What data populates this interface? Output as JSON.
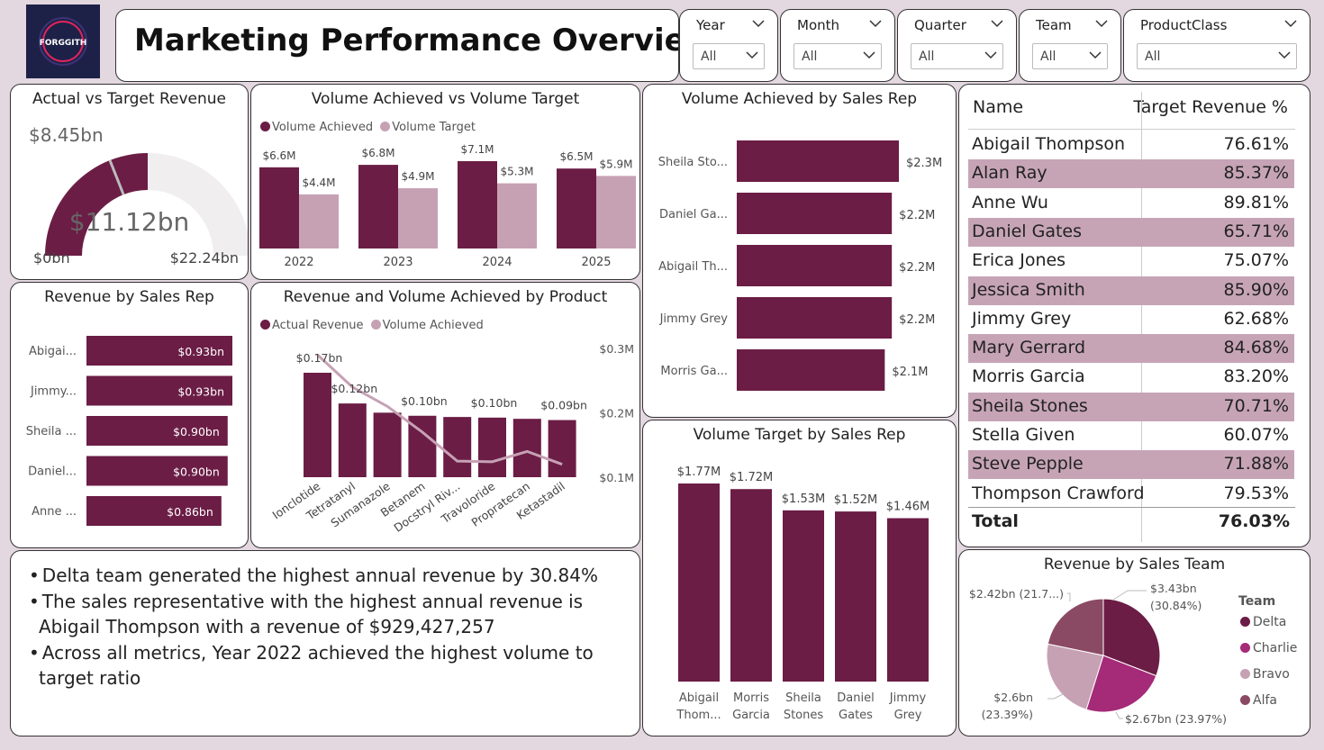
{
  "logo": {
    "text": "FORGGITH"
  },
  "header": {
    "title": "Marketing Performance Overview"
  },
  "slicers": [
    {
      "label": "Year",
      "value": "All"
    },
    {
      "label": "Month",
      "value": "All"
    },
    {
      "label": "Quarter",
      "value": "All"
    },
    {
      "label": "Team",
      "value": "All"
    },
    {
      "label": "ProductClass",
      "value": "All"
    }
  ],
  "colors": {
    "primary": "#6b1d45",
    "light": "#c6a1b4",
    "pink": "#a52a78",
    "mauve": "#8b4a63",
    "table_band": "#c6a4b6",
    "gauge_bg": "#f0eeee"
  },
  "gauge": {
    "title": "Actual vs Target Revenue",
    "value_label": "$11.12bn",
    "min_label": "$0bn",
    "max_label": "$22.24bn",
    "target_label": "$8.45bn"
  },
  "volume_by_year": {
    "title": "Volume Achieved vs Volume Target"
  },
  "revenue_by_rep": {
    "title": "Revenue by Sales Rep"
  },
  "rev_vol_product": {
    "title": "Revenue and Volume Achieved by Product"
  },
  "vol_achieved_rep": {
    "title": "Volume Achieved by Sales Rep"
  },
  "vol_target_rep": {
    "title": "Volume Target by Sales Rep"
  },
  "target_table": {
    "col_name": "Name",
    "col_value": "Target Revenue %",
    "rows": [
      {
        "name": "Abigail Thompson",
        "value": "76.61%"
      },
      {
        "name": "Alan Ray",
        "value": "85.37%"
      },
      {
        "name": "Anne Wu",
        "value": "89.81%"
      },
      {
        "name": "Daniel Gates",
        "value": "65.71%"
      },
      {
        "name": "Erica Jones",
        "value": "75.07%"
      },
      {
        "name": "Jessica Smith",
        "value": "85.90%"
      },
      {
        "name": "Jimmy Grey",
        "value": "62.68%"
      },
      {
        "name": "Mary Gerrard",
        "value": "84.68%"
      },
      {
        "name": "Morris Garcia",
        "value": "83.20%"
      },
      {
        "name": "Sheila Stones",
        "value": "70.71%"
      },
      {
        "name": "Stella Given",
        "value": "60.07%"
      },
      {
        "name": "Steve Pepple",
        "value": "71.88%"
      },
      {
        "name": "Thompson Crawford",
        "value": "79.53%"
      }
    ],
    "total_label": "Total",
    "total_value": "76.03%"
  },
  "insights": [
    "Delta team generated the highest annual revenue by 30.84%",
    "The sales representative with the highest annual revenue is Abigail Thompson with a revenue of $929,427,257",
    "Across all metrics, Year 2022 achieved the highest volume to target ratio"
  ],
  "team_pie": {
    "title": "Revenue by Sales Team",
    "legend_title": "Team"
  },
  "chart_data": [
    {
      "id": "gauge",
      "type": "gauge",
      "title": "Actual vs Target Revenue",
      "value": 11.12,
      "min": 0,
      "max": 22.24,
      "target": 8.45,
      "unit": "bn"
    },
    {
      "id": "volume_by_year",
      "type": "bar",
      "title": "Volume Achieved vs Volume Target",
      "categories": [
        "2022",
        "2023",
        "2024",
        "2025"
      ],
      "series": [
        {
          "name": "Volume Achieved",
          "values": [
            6.6,
            6.8,
            7.1,
            6.5
          ],
          "labels": [
            "$6.6M",
            "$6.8M",
            "$7.1M",
            "$6.5M"
          ]
        },
        {
          "name": "Volume Target",
          "values": [
            4.4,
            4.9,
            5.3,
            5.9
          ],
          "labels": [
            "$4.4M",
            "$4.9M",
            "$5.3M",
            "$5.9M"
          ]
        }
      ]
    },
    {
      "id": "revenue_by_rep",
      "type": "bar",
      "orientation": "horizontal",
      "title": "Revenue by Sales Rep",
      "categories": [
        "Abigai...",
        "Jimmy...",
        "Sheila ...",
        "Daniel...",
        "Anne ..."
      ],
      "values": [
        0.93,
        0.93,
        0.9,
        0.9,
        0.86
      ],
      "labels": [
        "$0.93bn",
        "$0.93bn",
        "$0.90bn",
        "$0.90bn",
        "$0.86bn"
      ]
    },
    {
      "id": "rev_vol_product",
      "type": "bar",
      "title": "Revenue and Volume Achieved by Product",
      "categories": [
        "Ionclotide",
        "Tetratanyl",
        "Sumanazole",
        "Betanem",
        "Docstryl Riv...",
        "Travoloride",
        "Propratecan",
        "Ketastadil"
      ],
      "series": [
        {
          "name": "Actual Revenue",
          "type": "bar",
          "values": [
            0.17,
            0.12,
            0.105,
            0.1,
            0.098,
            0.097,
            0.095,
            0.093
          ],
          "labels": [
            "$0.17bn",
            "$0.12bn",
            "",
            "$0.10bn",
            "",
            "$0.10bn",
            "",
            "$0.09bn"
          ]
        },
        {
          "name": "Volume Achieved",
          "type": "line",
          "values": [
            0.29,
            0.24,
            0.21,
            0.17,
            0.125,
            0.124,
            0.14,
            0.12
          ]
        }
      ],
      "y2_ticks": [
        "$0.3M",
        "$0.2M",
        "$0.1M"
      ]
    },
    {
      "id": "vol_achieved_rep",
      "type": "bar",
      "orientation": "horizontal",
      "title": "Volume Achieved by Sales Rep",
      "categories": [
        "Sheila Sto...",
        "Daniel Ga...",
        "Abigail Th...",
        "Jimmy Grey",
        "Morris Ga..."
      ],
      "values": [
        2.3,
        2.2,
        2.2,
        2.2,
        2.1
      ],
      "labels": [
        "$2.3M",
        "$2.2M",
        "$2.2M",
        "$2.2M",
        "$2.1M"
      ]
    },
    {
      "id": "vol_target_rep",
      "type": "bar",
      "title": "Volume Target by Sales Rep",
      "categories": [
        "Abigail Thom...",
        "Morris Garcia",
        "Sheila Stones",
        "Daniel Gates",
        "Jimmy Grey"
      ],
      "values": [
        1.77,
        1.72,
        1.53,
        1.52,
        1.46
      ],
      "labels": [
        "$1.77M",
        "$1.72M",
        "$1.53M",
        "$1.52M",
        "$1.46M"
      ]
    },
    {
      "id": "team_pie",
      "type": "pie",
      "title": "Revenue by Sales Team",
      "categories": [
        "Delta",
        "Charlie",
        "Bravo",
        "Alfa"
      ],
      "values": [
        3.43,
        2.67,
        2.6,
        2.42
      ],
      "percents": [
        30.84,
        23.97,
        23.39,
        21.7
      ],
      "labels": [
        [
          "$3.43bn",
          "(30.84%)"
        ],
        [
          "$2.67bn (23.97%)"
        ],
        [
          "$2.6bn",
          "(23.39%)"
        ],
        [
          "$2.42bn (21.7...)"
        ]
      ],
      "colors": [
        "#6b1d45",
        "#a52a78",
        "#c6a1b4",
        "#8b4a63"
      ]
    }
  ]
}
